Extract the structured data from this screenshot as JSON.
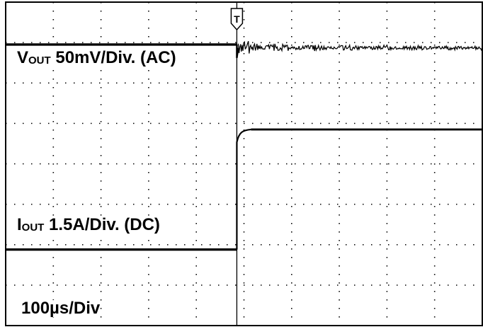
{
  "chart_data": {
    "type": "line",
    "title": "",
    "grid": true,
    "x_divisions": 10,
    "y_divisions": 8,
    "x_scale": "100µs/Div",
    "trigger": {
      "time_div": 4.85,
      "marker": "T"
    },
    "series": [
      {
        "name": "VOUT",
        "label_prefix": "V",
        "label_subscript": "OUT",
        "label_rest": " 50mV/Div. (AC)",
        "color": "#000000",
        "baseline_div": 6.95,
        "after_level_div": 6.87,
        "undershoot_div": -0.25,
        "noise_div": 0.12
      },
      {
        "name": "IOUT",
        "label_prefix": "I",
        "label_subscript": "OUT",
        "label_rest": " 1.5A/Div. (DC)",
        "color": "#000000",
        "before_level_div": 1.88,
        "after_level_div": 4.85
      }
    ],
    "time_label": "100µs/Div"
  }
}
